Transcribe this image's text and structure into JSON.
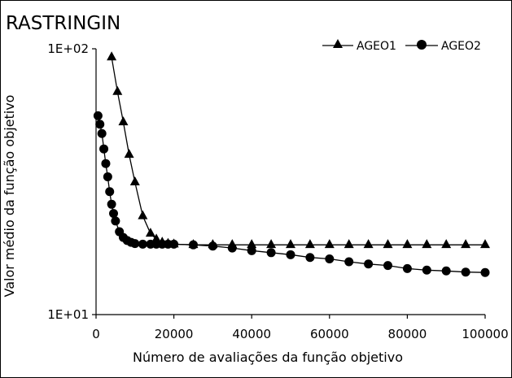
{
  "chart_data": {
    "type": "line",
    "title": "RASTRINGIN",
    "xlabel": "Número de avaliações da função objetivo",
    "ylabel": "Valor médio da função objetivo",
    "x_ticks": [
      "0",
      "20000",
      "40000",
      "60000",
      "80000",
      "100000"
    ],
    "y_ticks": [
      "1E+01",
      "1E+02"
    ],
    "xlim": [
      0,
      100000
    ],
    "ylim": [
      10,
      100
    ],
    "y_scale": "log",
    "grid": false,
    "legend_position": "top-right",
    "series": [
      {
        "name": "AGEO1",
        "marker": "triangle",
        "color": "#000000",
        "x": [
          4000,
          5500,
          7000,
          8500,
          10000,
          12000,
          14000,
          15500,
          17000,
          18500,
          20000,
          25000,
          30000,
          35000,
          40000,
          45000,
          50000,
          55000,
          60000,
          65000,
          70000,
          75000,
          80000,
          85000,
          90000,
          95000,
          100000
        ],
        "y": [
          93,
          69,
          53,
          40,
          31.5,
          23.5,
          20.2,
          19.2,
          18.7,
          18.5,
          18.4,
          18.3,
          18.3,
          18.3,
          18.3,
          18.3,
          18.3,
          18.3,
          18.3,
          18.3,
          18.3,
          18.3,
          18.3,
          18.3,
          18.3,
          18.3,
          18.3
        ]
      },
      {
        "name": "AGEO2",
        "marker": "circle",
        "color": "#000000",
        "x": [
          500,
          1000,
          1500,
          2000,
          2500,
          3000,
          3500,
          4000,
          4500,
          5000,
          6000,
          7000,
          8000,
          9000,
          10000,
          12000,
          14000,
          15500,
          17000,
          18500,
          20000,
          25000,
          30000,
          35000,
          40000,
          45000,
          50000,
          55000,
          60000,
          65000,
          70000,
          75000,
          80000,
          85000,
          90000,
          95000,
          100000
        ],
        "y": [
          56,
          52,
          48,
          42,
          37,
          33,
          29,
          26,
          24,
          22.5,
          20.5,
          19.5,
          19.0,
          18.7,
          18.5,
          18.4,
          18.4,
          18.4,
          18.4,
          18.4,
          18.4,
          18.3,
          18.1,
          17.8,
          17.4,
          17.1,
          16.8,
          16.4,
          16.2,
          15.8,
          15.5,
          15.3,
          14.9,
          14.7,
          14.6,
          14.45,
          14.4
        ]
      }
    ]
  }
}
